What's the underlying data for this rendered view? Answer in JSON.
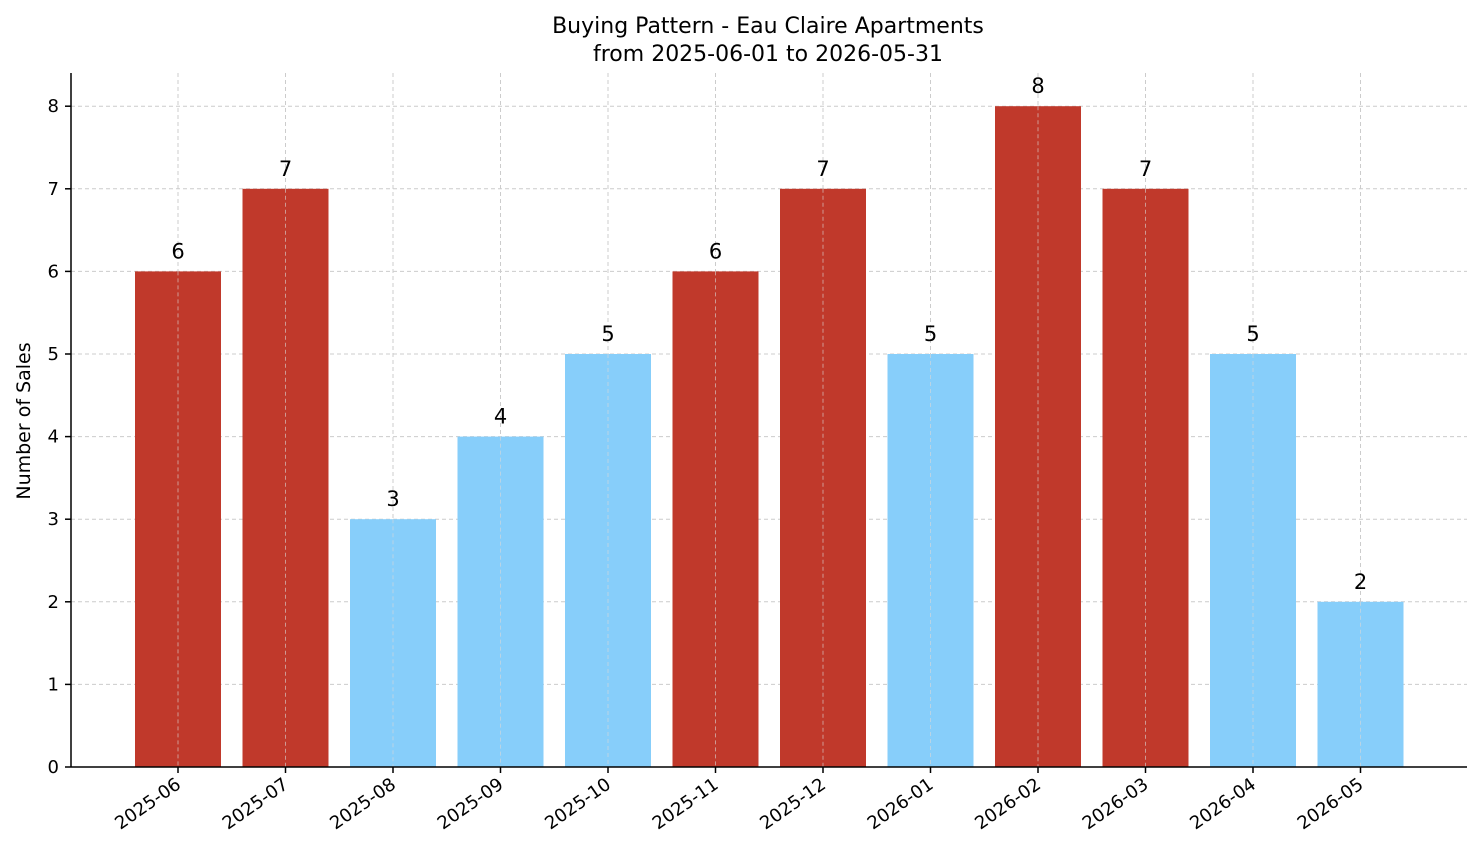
{
  "chart_data": {
    "type": "bar",
    "title": "Buying Pattern - Eau Claire Apartments",
    "subtitle": "from 2025-06-01 to 2026-05-31",
    "xlabel": "",
    "ylabel": "Number of Sales",
    "categories": [
      "2025-06",
      "2025-07",
      "2025-08",
      "2025-09",
      "2025-10",
      "2025-11",
      "2025-12",
      "2026-01",
      "2026-02",
      "2026-03",
      "2026-04",
      "2026-05"
    ],
    "values": [
      6,
      7,
      3,
      4,
      5,
      6,
      7,
      5,
      8,
      7,
      5,
      2
    ],
    "bar_colors": [
      "#c0392b",
      "#c0392b",
      "#87cefa",
      "#87cefa",
      "#87cefa",
      "#c0392b",
      "#c0392b",
      "#87cefa",
      "#c0392b",
      "#c0392b",
      "#87cefa",
      "#87cefa"
    ],
    "ylim": [
      0,
      8.4
    ],
    "yticks": [
      0,
      1,
      2,
      3,
      4,
      5,
      6,
      7,
      8
    ],
    "grid": true,
    "data_labels": true
  }
}
